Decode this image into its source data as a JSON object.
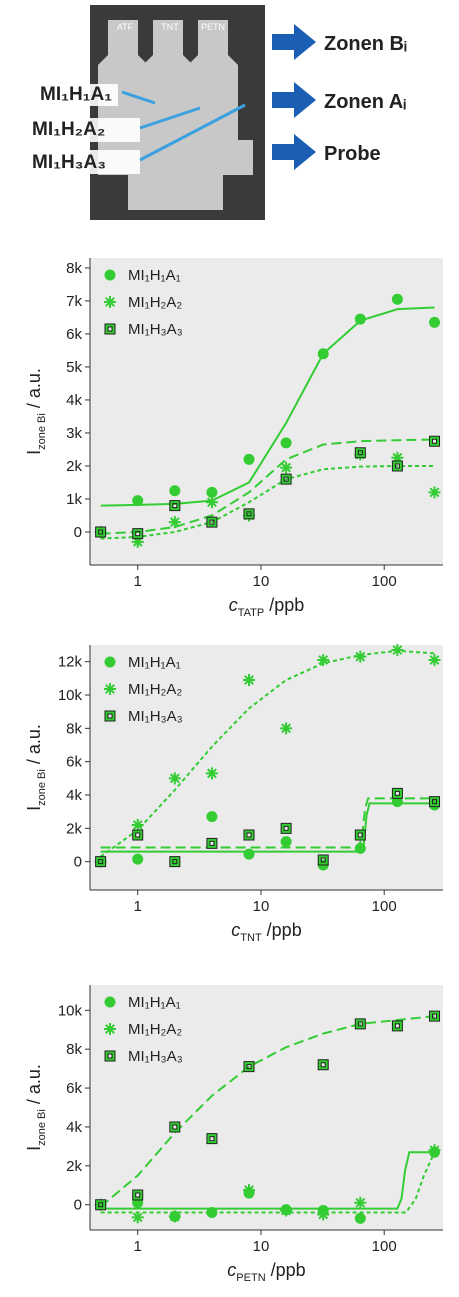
{
  "photo": {
    "lanes": [
      "ATF",
      "TNT",
      "PETN"
    ],
    "labels": [
      "MI₁H₁A₁",
      "MI₁H₂A₂",
      "MI₁H₃A₃"
    ],
    "zones": [
      "Zonen Bᵢ",
      "Zonen Aᵢ",
      "Probe"
    ]
  },
  "chart_data": [
    {
      "type": "scatter",
      "log_x": true,
      "xlabel": {
        "text": "c",
        "sub": "TATP",
        "suffix": " /ppb"
      },
      "ylabel": {
        "text": "I",
        "sub": "zone Bi",
        "suffix": " / a.u."
      },
      "xlim": [
        0.41,
        300
      ],
      "xticks": [
        1,
        10,
        100
      ],
      "ylim": [
        -1000,
        8300
      ],
      "yticks": [
        0,
        {
          "value": 1000,
          "label": "1k"
        },
        {
          "value": 2000,
          "label": "2k"
        },
        {
          "value": 3000,
          "label": "3k"
        },
        {
          "value": 4000,
          "label": "4k"
        },
        {
          "value": 5000,
          "label": "5k"
        },
        {
          "value": 6000,
          "label": "6k"
        },
        {
          "value": 7000,
          "label": "7k"
        },
        {
          "value": 8000,
          "label": "8k"
        }
      ],
      "x": [
        0.5,
        1,
        2,
        4,
        8,
        16,
        32,
        64,
        128,
        256
      ],
      "series": [
        {
          "name": "MI₁H₁A₁",
          "marker": "circle",
          "color": "#33cc33",
          "values": [
            0,
            950,
            1250,
            1200,
            2200,
            2700,
            5400,
            6450,
            7050,
            6350
          ]
        },
        {
          "name": "MI₁H₂A₂",
          "marker": "asterisk",
          "color": "#33cc33",
          "values": [
            0,
            -300,
            300,
            900,
            500,
            1950,
            null,
            2350,
            2250,
            1200
          ]
        },
        {
          "name": "MI₁H₃A₃",
          "marker": "square",
          "color": "#33cc33",
          "values": [
            0,
            -50,
            800,
            300,
            550,
            1600,
            null,
            2400,
            2000,
            2750
          ]
        }
      ],
      "fits": [
        {
          "dash": "solid",
          "color": "#33cc33",
          "x": [
            0.5,
            1,
            2,
            4,
            8,
            16,
            32,
            64,
            128,
            256
          ],
          "values": [
            800,
            820,
            850,
            950,
            1500,
            3300,
            5400,
            6400,
            6750,
            6800
          ]
        },
        {
          "dash": "short",
          "color": "#33cc33",
          "x": [
            0.5,
            1,
            2,
            4,
            8,
            16,
            32,
            64,
            128,
            256
          ],
          "values": [
            -200,
            -150,
            0,
            300,
            900,
            1600,
            1900,
            1980,
            2000,
            2000
          ]
        },
        {
          "dash": "long",
          "color": "#33cc33",
          "x": [
            0.5,
            1,
            2,
            4,
            8,
            16,
            32,
            64,
            128,
            256
          ],
          "values": [
            -50,
            0,
            150,
            500,
            1200,
            2200,
            2650,
            2750,
            2780,
            2800
          ]
        }
      ]
    },
    {
      "type": "scatter",
      "log_x": true,
      "xlabel": {
        "text": "c",
        "sub": "TNT",
        "suffix": " /ppb"
      },
      "ylabel": {
        "text": "I",
        "sub": "zone Bi",
        "suffix": " / a.u."
      },
      "xlim": [
        0.41,
        300
      ],
      "xticks": [
        1,
        10,
        100
      ],
      "ylim": [
        -1700,
        13000
      ],
      "yticks": [
        0,
        {
          "value": 2000,
          "label": "2k"
        },
        {
          "value": 4000,
          "label": "4k"
        },
        {
          "value": 6000,
          "label": "6k"
        },
        {
          "value": 8000,
          "label": "8k"
        },
        {
          "value": 10000,
          "label": "10k"
        },
        {
          "value": 12000,
          "label": "12k"
        }
      ],
      "x": [
        0.5,
        1,
        2,
        4,
        8,
        16,
        32,
        64,
        128,
        256
      ],
      "series": [
        {
          "name": "MI₁H₁A₁",
          "marker": "circle",
          "color": "#33cc33",
          "values": [
            0,
            150,
            0,
            2700,
            450,
            1200,
            -200,
            800,
            3600,
            3400
          ]
        },
        {
          "name": "MI₁H₂A₂",
          "marker": "asterisk",
          "color": "#33cc33",
          "values": [
            0,
            2200,
            5000,
            5300,
            10900,
            8000,
            12100,
            12300,
            12700,
            12100
          ]
        },
        {
          "name": "MI₁H₃A₃",
          "marker": "square",
          "color": "#33cc33",
          "values": [
            0,
            1600,
            0,
            1100,
            1600,
            2000,
            100,
            1600,
            4100,
            3600
          ]
        }
      ],
      "fits": [
        {
          "dash": "short",
          "color": "#33cc33",
          "x": [
            0.5,
            1,
            2,
            4,
            8,
            16,
            32,
            64,
            128,
            256
          ],
          "values": [
            300,
            1900,
            4300,
            6900,
            9200,
            10900,
            11900,
            12400,
            12650,
            12500
          ]
        },
        {
          "dash": "solid",
          "color": "#33cc33",
          "x": [
            0.5,
            64,
            68,
            72,
            76,
            256
          ],
          "values": [
            600,
            600,
            900,
            2800,
            3500,
            3500
          ]
        },
        {
          "dash": "long",
          "color": "#33cc33",
          "x": [
            0.5,
            62,
            66,
            70,
            74,
            256
          ],
          "values": [
            850,
            850,
            1500,
            3200,
            3800,
            3800
          ]
        }
      ]
    },
    {
      "type": "scatter",
      "log_x": true,
      "xlabel": {
        "text": "c",
        "sub": "PETN",
        "suffix": " /ppb"
      },
      "ylabel": {
        "text": "I",
        "sub": "zone Bi",
        "suffix": " / a.u."
      },
      "xlim": [
        0.41,
        300
      ],
      "xticks": [
        1,
        10,
        100
      ],
      "ylim": [
        -1300,
        11300
      ],
      "yticks": [
        0,
        {
          "value": 2000,
          "label": "2k"
        },
        {
          "value": 4000,
          "label": "4k"
        },
        {
          "value": 6000,
          "label": "6k"
        },
        {
          "value": 8000,
          "label": "8k"
        },
        {
          "value": 10000,
          "label": "10k"
        }
      ],
      "x": [
        0.5,
        1,
        2,
        4,
        8,
        16,
        32,
        64,
        128,
        256
      ],
      "series": [
        {
          "name": "MI₁H₁A₁",
          "marker": "circle",
          "color": "#33cc33",
          "values": [
            0,
            100,
            -600,
            -400,
            600,
            -250,
            -300,
            -700,
            null,
            2700
          ]
        },
        {
          "name": "MI₁H₂A₂",
          "marker": "asterisk",
          "color": "#33cc33",
          "values": [
            0,
            -650,
            -600,
            null,
            750,
            -300,
            -500,
            100,
            null,
            2800
          ]
        },
        {
          "name": "MI₁H₃A₃",
          "marker": "square",
          "color": "#33cc33",
          "values": [
            0,
            500,
            4000,
            3400,
            7100,
            null,
            7200,
            9300,
            9200,
            9700
          ]
        }
      ],
      "fits": [
        {
          "dash": "long",
          "color": "#33cc33",
          "x": [
            0.5,
            1,
            2,
            4,
            8,
            16,
            32,
            64,
            128,
            256
          ],
          "values": [
            -100,
            1500,
            3700,
            5600,
            7100,
            8100,
            8800,
            9300,
            9500,
            9700
          ]
        },
        {
          "dash": "solid",
          "color": "#33cc33",
          "x": [
            0.5,
            128,
            138,
            148,
            160,
            256
          ],
          "values": [
            -200,
            -200,
            300,
            1800,
            2700,
            2700
          ]
        },
        {
          "dash": "short",
          "color": "#33cc33",
          "x": [
            0.5,
            150,
            180,
            210,
            256
          ],
          "values": [
            -400,
            -400,
            300,
            1500,
            2700
          ]
        }
      ]
    }
  ]
}
